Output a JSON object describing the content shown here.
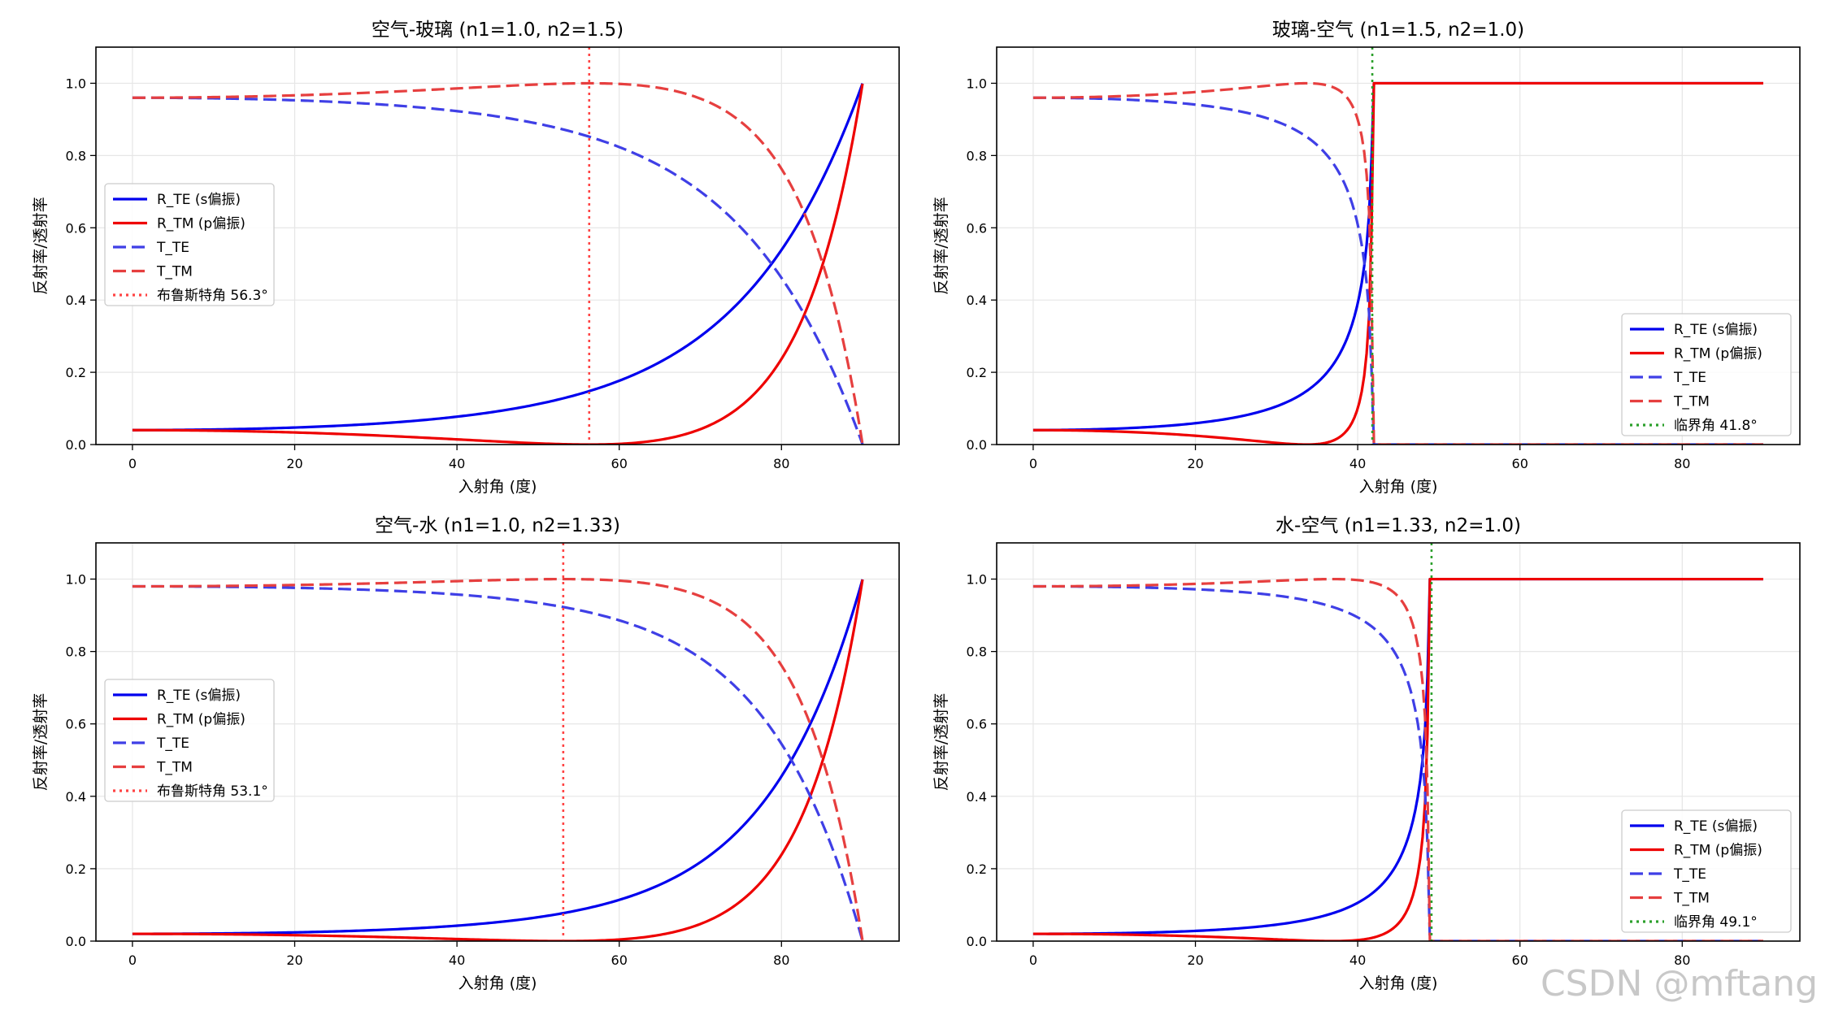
{
  "watermark": "CSDN @mftang",
  "chart_data": [
    {
      "type": "line",
      "title": "空气-玻璃 (n1=1.0, n2=1.5)",
      "n1": 1.0,
      "n2": 1.5,
      "xlabel": "入射角 (度)",
      "ylabel": "反射率/透射率",
      "xlim": [
        -4.5,
        94.5
      ],
      "ylim": [
        0,
        1.1
      ],
      "xticks": [
        "0",
        "20",
        "40",
        "60",
        "80"
      ],
      "yticks": [
        "0.0",
        "0.2",
        "0.4",
        "0.6",
        "0.8",
        "1.0"
      ],
      "legend_position": "center-left",
      "series": [
        {
          "name": "R_TE (s偏振)",
          "color": "#0000ee",
          "style": "solid"
        },
        {
          "name": "R_TM (p偏振)",
          "color": "#ee0000",
          "style": "solid"
        },
        {
          "name": "T_TE",
          "color": "#3f3fe6",
          "style": "dashed"
        },
        {
          "name": "T_TM",
          "color": "#e63f3f",
          "style": "dashed"
        }
      ],
      "marker": {
        "name": "布鲁斯特角 56.3°",
        "angle": 56.3,
        "color": "#ff4444",
        "style": "dotted"
      }
    },
    {
      "type": "line",
      "title": "玻璃-空气 (n1=1.5, n2=1.0)",
      "n1": 1.5,
      "n2": 1.0,
      "xlabel": "入射角 (度)",
      "ylabel": "反射率/透射率",
      "xlim": [
        -4.5,
        94.5
      ],
      "ylim": [
        0,
        1.1
      ],
      "xticks": [
        "0",
        "20",
        "40",
        "60",
        "80"
      ],
      "yticks": [
        "0.0",
        "0.2",
        "0.4",
        "0.6",
        "0.8",
        "1.0"
      ],
      "legend_position": "lower-right",
      "series": [
        {
          "name": "R_TE (s偏振)",
          "color": "#0000ee",
          "style": "solid"
        },
        {
          "name": "R_TM (p偏振)",
          "color": "#ee0000",
          "style": "solid"
        },
        {
          "name": "T_TE",
          "color": "#3f3fe6",
          "style": "dashed"
        },
        {
          "name": "T_TM",
          "color": "#e63f3f",
          "style": "dashed"
        }
      ],
      "marker": {
        "name": "临界角 41.8°",
        "angle": 41.8,
        "color": "#2ca02c",
        "style": "dotted"
      }
    },
    {
      "type": "line",
      "title": "空气-水 (n1=1.0, n2=1.33)",
      "n1": 1.0,
      "n2": 1.33,
      "xlabel": "入射角 (度)",
      "ylabel": "反射率/透射率",
      "xlim": [
        -4.5,
        94.5
      ],
      "ylim": [
        0,
        1.1
      ],
      "xticks": [
        "0",
        "20",
        "40",
        "60",
        "80"
      ],
      "yticks": [
        "0.0",
        "0.2",
        "0.4",
        "0.6",
        "0.8",
        "1.0"
      ],
      "legend_position": "center-left",
      "series": [
        {
          "name": "R_TE (s偏振)",
          "color": "#0000ee",
          "style": "solid"
        },
        {
          "name": "R_TM (p偏振)",
          "color": "#ee0000",
          "style": "solid"
        },
        {
          "name": "T_TE",
          "color": "#3f3fe6",
          "style": "dashed"
        },
        {
          "name": "T_TM",
          "color": "#e63f3f",
          "style": "dashed"
        }
      ],
      "marker": {
        "name": "布鲁斯特角 53.1°",
        "angle": 53.1,
        "color": "#ff4444",
        "style": "dotted"
      }
    },
    {
      "type": "line",
      "title": "水-空气 (n1=1.33, n2=1.0)",
      "n1": 1.33,
      "n2": 1.0,
      "xlabel": "入射角 (度)",
      "ylabel": "反射率/透射率",
      "xlim": [
        -4.5,
        94.5
      ],
      "ylim": [
        0,
        1.1
      ],
      "xticks": [
        "0",
        "20",
        "40",
        "60",
        "80"
      ],
      "yticks": [
        "0.0",
        "0.2",
        "0.4",
        "0.6",
        "0.8",
        "1.0"
      ],
      "legend_position": "lower-right",
      "series": [
        {
          "name": "R_TE (s偏振)",
          "color": "#0000ee",
          "style": "solid"
        },
        {
          "name": "R_TM (p偏振)",
          "color": "#ee0000",
          "style": "solid"
        },
        {
          "name": "T_TE",
          "color": "#3f3fe6",
          "style": "dashed"
        },
        {
          "name": "T_TM",
          "color": "#e63f3f",
          "style": "dashed"
        }
      ],
      "marker": {
        "name": "临界角 49.1°",
        "angle": 49.1,
        "color": "#2ca02c",
        "style": "dotted"
      }
    }
  ]
}
